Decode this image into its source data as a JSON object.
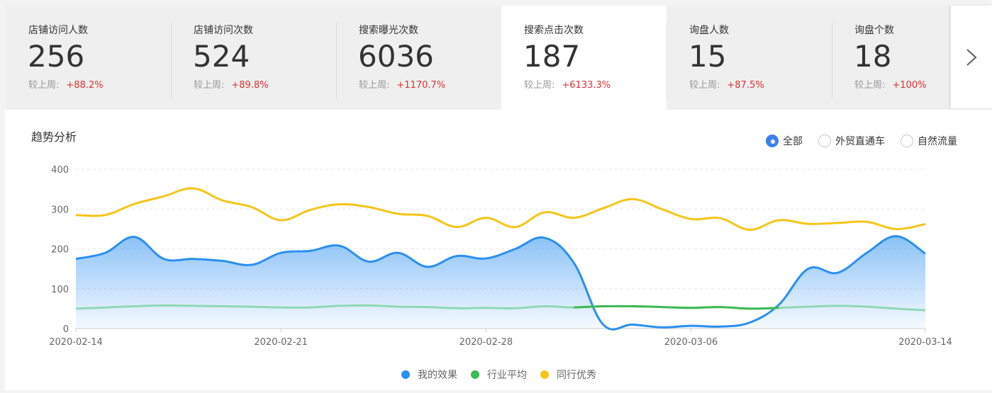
{
  "metrics": [
    {
      "label": "店铺访问人数",
      "value": "256",
      "compare_label": "较上周:",
      "change": "+88.2%"
    },
    {
      "label": "店铺访问次数",
      "value": "524",
      "compare_label": "较上周:",
      "change": "+89.8%"
    },
    {
      "label": "搜索曝光次数",
      "value": "6036",
      "compare_label": "较上周:",
      "change": "+1170.7%"
    },
    {
      "label": "搜索点击次数",
      "value": "187",
      "compare_label": "较上周:",
      "change": "+6133.3%"
    },
    {
      "label": "询盘人数",
      "value": "15",
      "compare_label": "较上周:",
      "change": "+87.5%"
    },
    {
      "label": "询盘个数",
      "value": "18",
      "compare_label": "较上周:",
      "change": "+100%"
    }
  ],
  "active_metric": 3,
  "next_icon": "chevron-right-icon",
  "panel": {
    "title": "趋势分析",
    "filters": [
      {
        "label": "全部",
        "checked": true
      },
      {
        "label": "外贸直通车",
        "checked": false
      },
      {
        "label": "自然流量",
        "checked": false
      }
    ]
  },
  "chart_data": {
    "type": "line",
    "title": "趋势分析",
    "x": [
      "2020-02-14",
      "2020-02-15",
      "2020-02-16",
      "2020-02-17",
      "2020-02-18",
      "2020-02-19",
      "2020-02-20",
      "2020-02-21",
      "2020-02-22",
      "2020-02-23",
      "2020-02-24",
      "2020-02-25",
      "2020-02-26",
      "2020-02-27",
      "2020-02-28",
      "2020-02-29",
      "2020-03-01",
      "2020-03-02",
      "2020-03-03",
      "2020-03-04",
      "2020-03-05",
      "2020-03-06",
      "2020-03-07",
      "2020-03-08",
      "2020-03-09",
      "2020-03-10",
      "2020-03-11",
      "2020-03-12",
      "2020-03-13",
      "2020-03-14"
    ],
    "tick_labels": [
      "2020-02-14",
      "2020-02-21",
      "2020-02-28",
      "2020-03-06",
      "2020-03-14"
    ],
    "tick_index": [
      0,
      7,
      14,
      21,
      29
    ],
    "ylim": [
      0,
      400
    ],
    "yticks": [
      0,
      100,
      200,
      300,
      400
    ],
    "grid": true,
    "legend_position": "bottom-center",
    "series": [
      {
        "name": "我的效果",
        "color": "#2b8ff0",
        "area": true,
        "values": [
          175,
          190,
          230,
          175,
          175,
          170,
          160,
          190,
          195,
          208,
          168,
          190,
          155,
          182,
          176,
          200,
          228,
          165,
          10,
          10,
          3,
          7,
          5,
          15,
          60,
          150,
          140,
          190,
          232,
          188
        ]
      },
      {
        "name": "行业平均",
        "color": "#3cba54",
        "area": false,
        "values": [
          50,
          53,
          56,
          58,
          57,
          56,
          55,
          53,
          53,
          57,
          58,
          55,
          54,
          51,
          52,
          51,
          56,
          53,
          56,
          56,
          54,
          52,
          54,
          50,
          52,
          55,
          57,
          55,
          50,
          46
        ]
      },
      {
        "name": "同行优秀",
        "color": "#f5c518",
        "area": false,
        "values": [
          285,
          285,
          313,
          332,
          352,
          322,
          305,
          272,
          298,
          312,
          305,
          288,
          283,
          255,
          278,
          255,
          292,
          278,
          302,
          325,
          300,
          275,
          277,
          248,
          272,
          263,
          265,
          268,
          250,
          262
        ]
      }
    ]
  }
}
